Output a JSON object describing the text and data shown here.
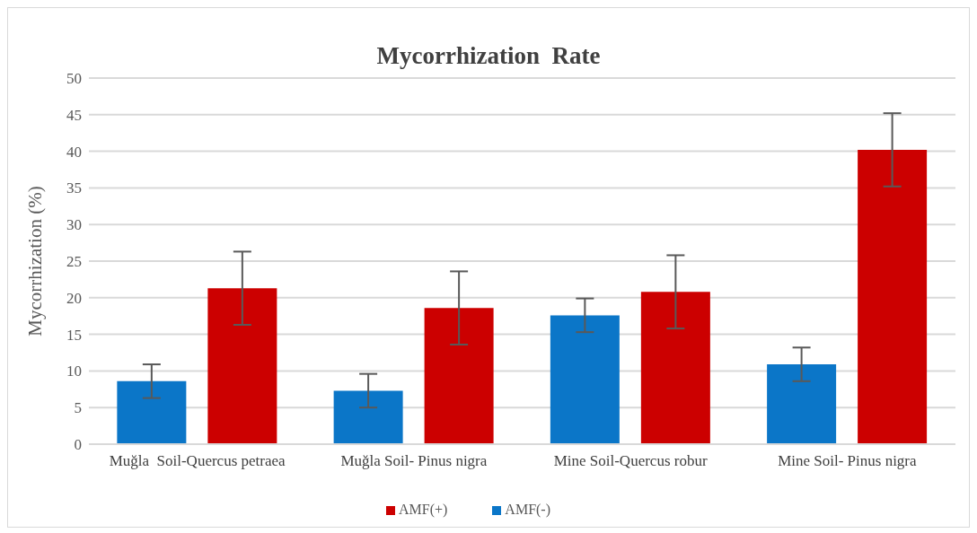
{
  "chart_data": {
    "type": "bar",
    "title": "Mycorrhization  Rate",
    "ylabel": "Mycorrhization (%)",
    "categories": [
      "Muğla  Soil-Quercus petraea",
      "Muğla Soil- Pinus nigra",
      "Mine Soil-Quercus robur",
      "Mine Soil- Pinus nigra"
    ],
    "series": [
      {
        "name": "AMF(-)",
        "color": "#0b76c8",
        "values": [
          8.6,
          7.3,
          17.6,
          10.9
        ],
        "errors": [
          2.3,
          2.3,
          2.3,
          2.3
        ]
      },
      {
        "name": "AMF(+)",
        "color": "#cc0000",
        "values": [
          21.3,
          18.6,
          20.8,
          40.2
        ],
        "errors": [
          5,
          5,
          5,
          5
        ]
      }
    ],
    "ylim": [
      0,
      50
    ],
    "yticks": [
      0,
      5,
      10,
      15,
      20,
      25,
      30,
      35,
      40,
      45,
      50
    ],
    "grid": "y",
    "legend": "bottom"
  }
}
